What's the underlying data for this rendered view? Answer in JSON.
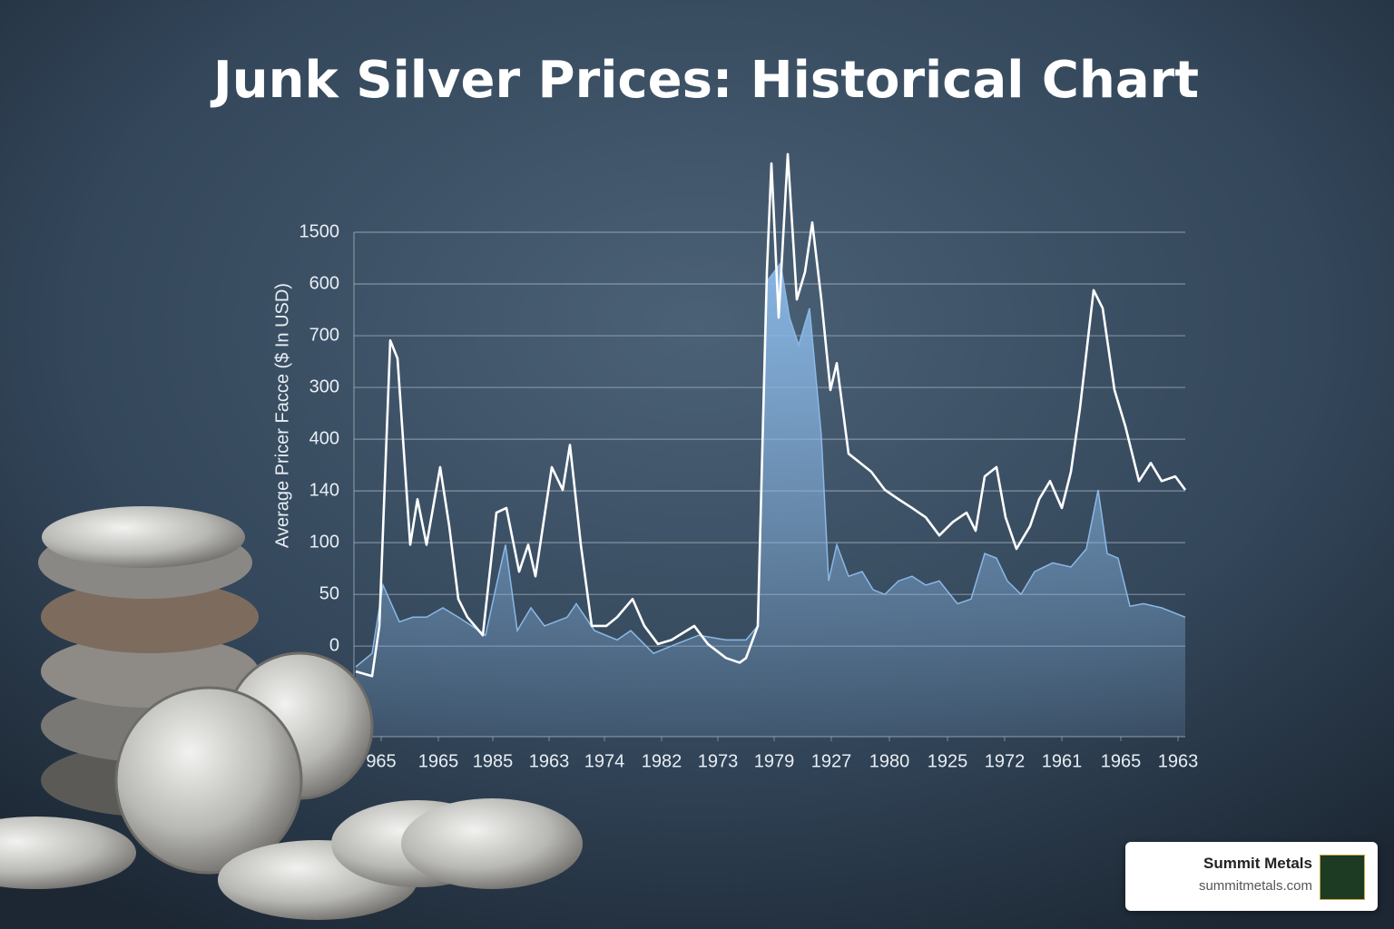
{
  "chart_data": {
    "type": "line",
    "title": "Junk Silver Prices: Historical Chart",
    "y_label": "Average Pricer Facce ($ In USD)",
    "xlim": [
      0,
      91.6
    ],
    "ylim": [
      -1.75,
      8
    ],
    "grid": true,
    "yticks": [
      {
        "value": 8,
        "label": "1500"
      },
      {
        "value": 7,
        "label": "600"
      },
      {
        "value": 6,
        "label": "700"
      },
      {
        "value": 5,
        "label": "300"
      },
      {
        "value": 4,
        "label": "400"
      },
      {
        "value": 3,
        "label": "140"
      },
      {
        "value": 2,
        "label": "100"
      },
      {
        "value": 1,
        "label": "50"
      },
      {
        "value": 0,
        "label": "0"
      }
    ],
    "xticks": [
      {
        "value": 3,
        "label": "965"
      },
      {
        "value": 9.3,
        "label": "1965"
      },
      {
        "value": 15.3,
        "label": "1985"
      },
      {
        "value": 21.5,
        "label": "1963"
      },
      {
        "value": 27.6,
        "label": "1974"
      },
      {
        "value": 33.9,
        "label": "1982"
      },
      {
        "value": 40.1,
        "label": "1973"
      },
      {
        "value": 46.3,
        "label": "1979"
      },
      {
        "value": 52.6,
        "label": "1927"
      },
      {
        "value": 59,
        "label": "1980"
      },
      {
        "value": 65.4,
        "label": "1925"
      },
      {
        "value": 71.7,
        "label": "1972"
      },
      {
        "value": 78,
        "label": "1961"
      },
      {
        "value": 84.5,
        "label": "1965"
      },
      {
        "value": 90.8,
        "label": "1963"
      }
    ],
    "series": [
      {
        "kind": "area",
        "color": "#8ab8e6",
        "x": [
          0.2,
          2,
          3.2,
          5,
          6.5,
          8,
          9.8,
          11.5,
          13,
          14.5,
          15.8,
          16.7,
          18,
          19.5,
          21,
          23.5,
          24.5,
          26.5,
          29,
          30.5,
          33,
          35.5,
          38,
          41,
          43.2,
          44.5,
          45.5,
          47,
          48,
          49,
          50.2,
          51.5,
          52.3,
          53.2,
          54.5,
          56,
          57.2,
          58.5,
          60,
          61.5,
          63,
          64.5,
          66.5,
          68,
          69.5,
          70.8,
          72,
          73.5,
          75,
          77,
          79,
          80.7,
          82,
          83,
          84.2,
          85.5,
          87,
          89,
          91.6
        ],
        "values": [
          -0.4,
          -0.14,
          1.18,
          0.47,
          0.56,
          0.56,
          0.74,
          0.56,
          0.39,
          0.21,
          1.26,
          1.96,
          0.3,
          0.74,
          0.39,
          0.56,
          0.82,
          0.3,
          0.12,
          0.3,
          -0.14,
          0.04,
          0.21,
          0.12,
          0.12,
          0.39,
          7.05,
          7.4,
          6.35,
          5.82,
          6.53,
          4.07,
          1.26,
          1.96,
          1.35,
          1.44,
          1.09,
          1,
          1.26,
          1.35,
          1.18,
          1.26,
          0.82,
          0.91,
          1.79,
          1.7,
          1.26,
          1,
          1.44,
          1.61,
          1.53,
          1.88,
          3.02,
          1.79,
          1.7,
          0.77,
          0.82,
          0.74,
          0.56
        ]
      },
      {
        "kind": "line",
        "color": "#ffffff",
        "x": [
          0.2,
          2,
          2.8,
          4,
          4.8,
          6.2,
          7,
          8,
          9.5,
          10.5,
          11.5,
          12.5,
          14.2,
          15.7,
          16.8,
          18.2,
          19.2,
          20,
          21.8,
          23,
          23.8,
          25,
          26.2,
          27.8,
          29,
          30.7,
          32,
          33.5,
          35,
          37.5,
          39,
          41,
          42.5,
          43.2,
          44.5,
          45.5,
          46,
          46.8,
          47.8,
          48.8,
          49.7,
          50.5,
          51.5,
          52.5,
          53.2,
          54.5,
          55.8,
          57,
          58.5,
          60,
          61.5,
          63,
          64.5,
          66,
          67.5,
          68.5,
          69.5,
          70.8,
          71.8,
          73,
          74.5,
          75.5,
          76.7,
          78,
          79,
          80,
          81.5,
          82.5,
          83.8,
          85,
          86.5,
          87.8,
          89,
          90.5,
          91.6
        ],
        "values": [
          -0.49,
          -0.58,
          0.39,
          5.91,
          5.56,
          1.96,
          2.84,
          1.96,
          3.46,
          2.32,
          0.91,
          0.56,
          0.21,
          2.58,
          2.67,
          1.44,
          1.96,
          1.35,
          3.46,
          3.02,
          3.89,
          1.96,
          0.39,
          0.39,
          0.56,
          0.91,
          0.39,
          0.04,
          0.12,
          0.39,
          0.04,
          -0.23,
          -0.32,
          -0.23,
          0.39,
          7.23,
          9.33,
          6.35,
          9.51,
          6.7,
          7.23,
          8.19,
          6.7,
          4.95,
          5.47,
          3.72,
          3.54,
          3.37,
          3.02,
          2.84,
          2.67,
          2.49,
          2.14,
          2.4,
          2.58,
          2.23,
          3.28,
          3.46,
          2.49,
          1.88,
          2.32,
          2.84,
          3.19,
          2.67,
          3.37,
          4.6,
          6.88,
          6.53,
          4.95,
          4.25,
          3.19,
          3.54,
          3.19,
          3.28,
          3.02
        ]
      }
    ]
  },
  "badge": {
    "name": "Summit Metals",
    "url": "summitmetals.com"
  }
}
